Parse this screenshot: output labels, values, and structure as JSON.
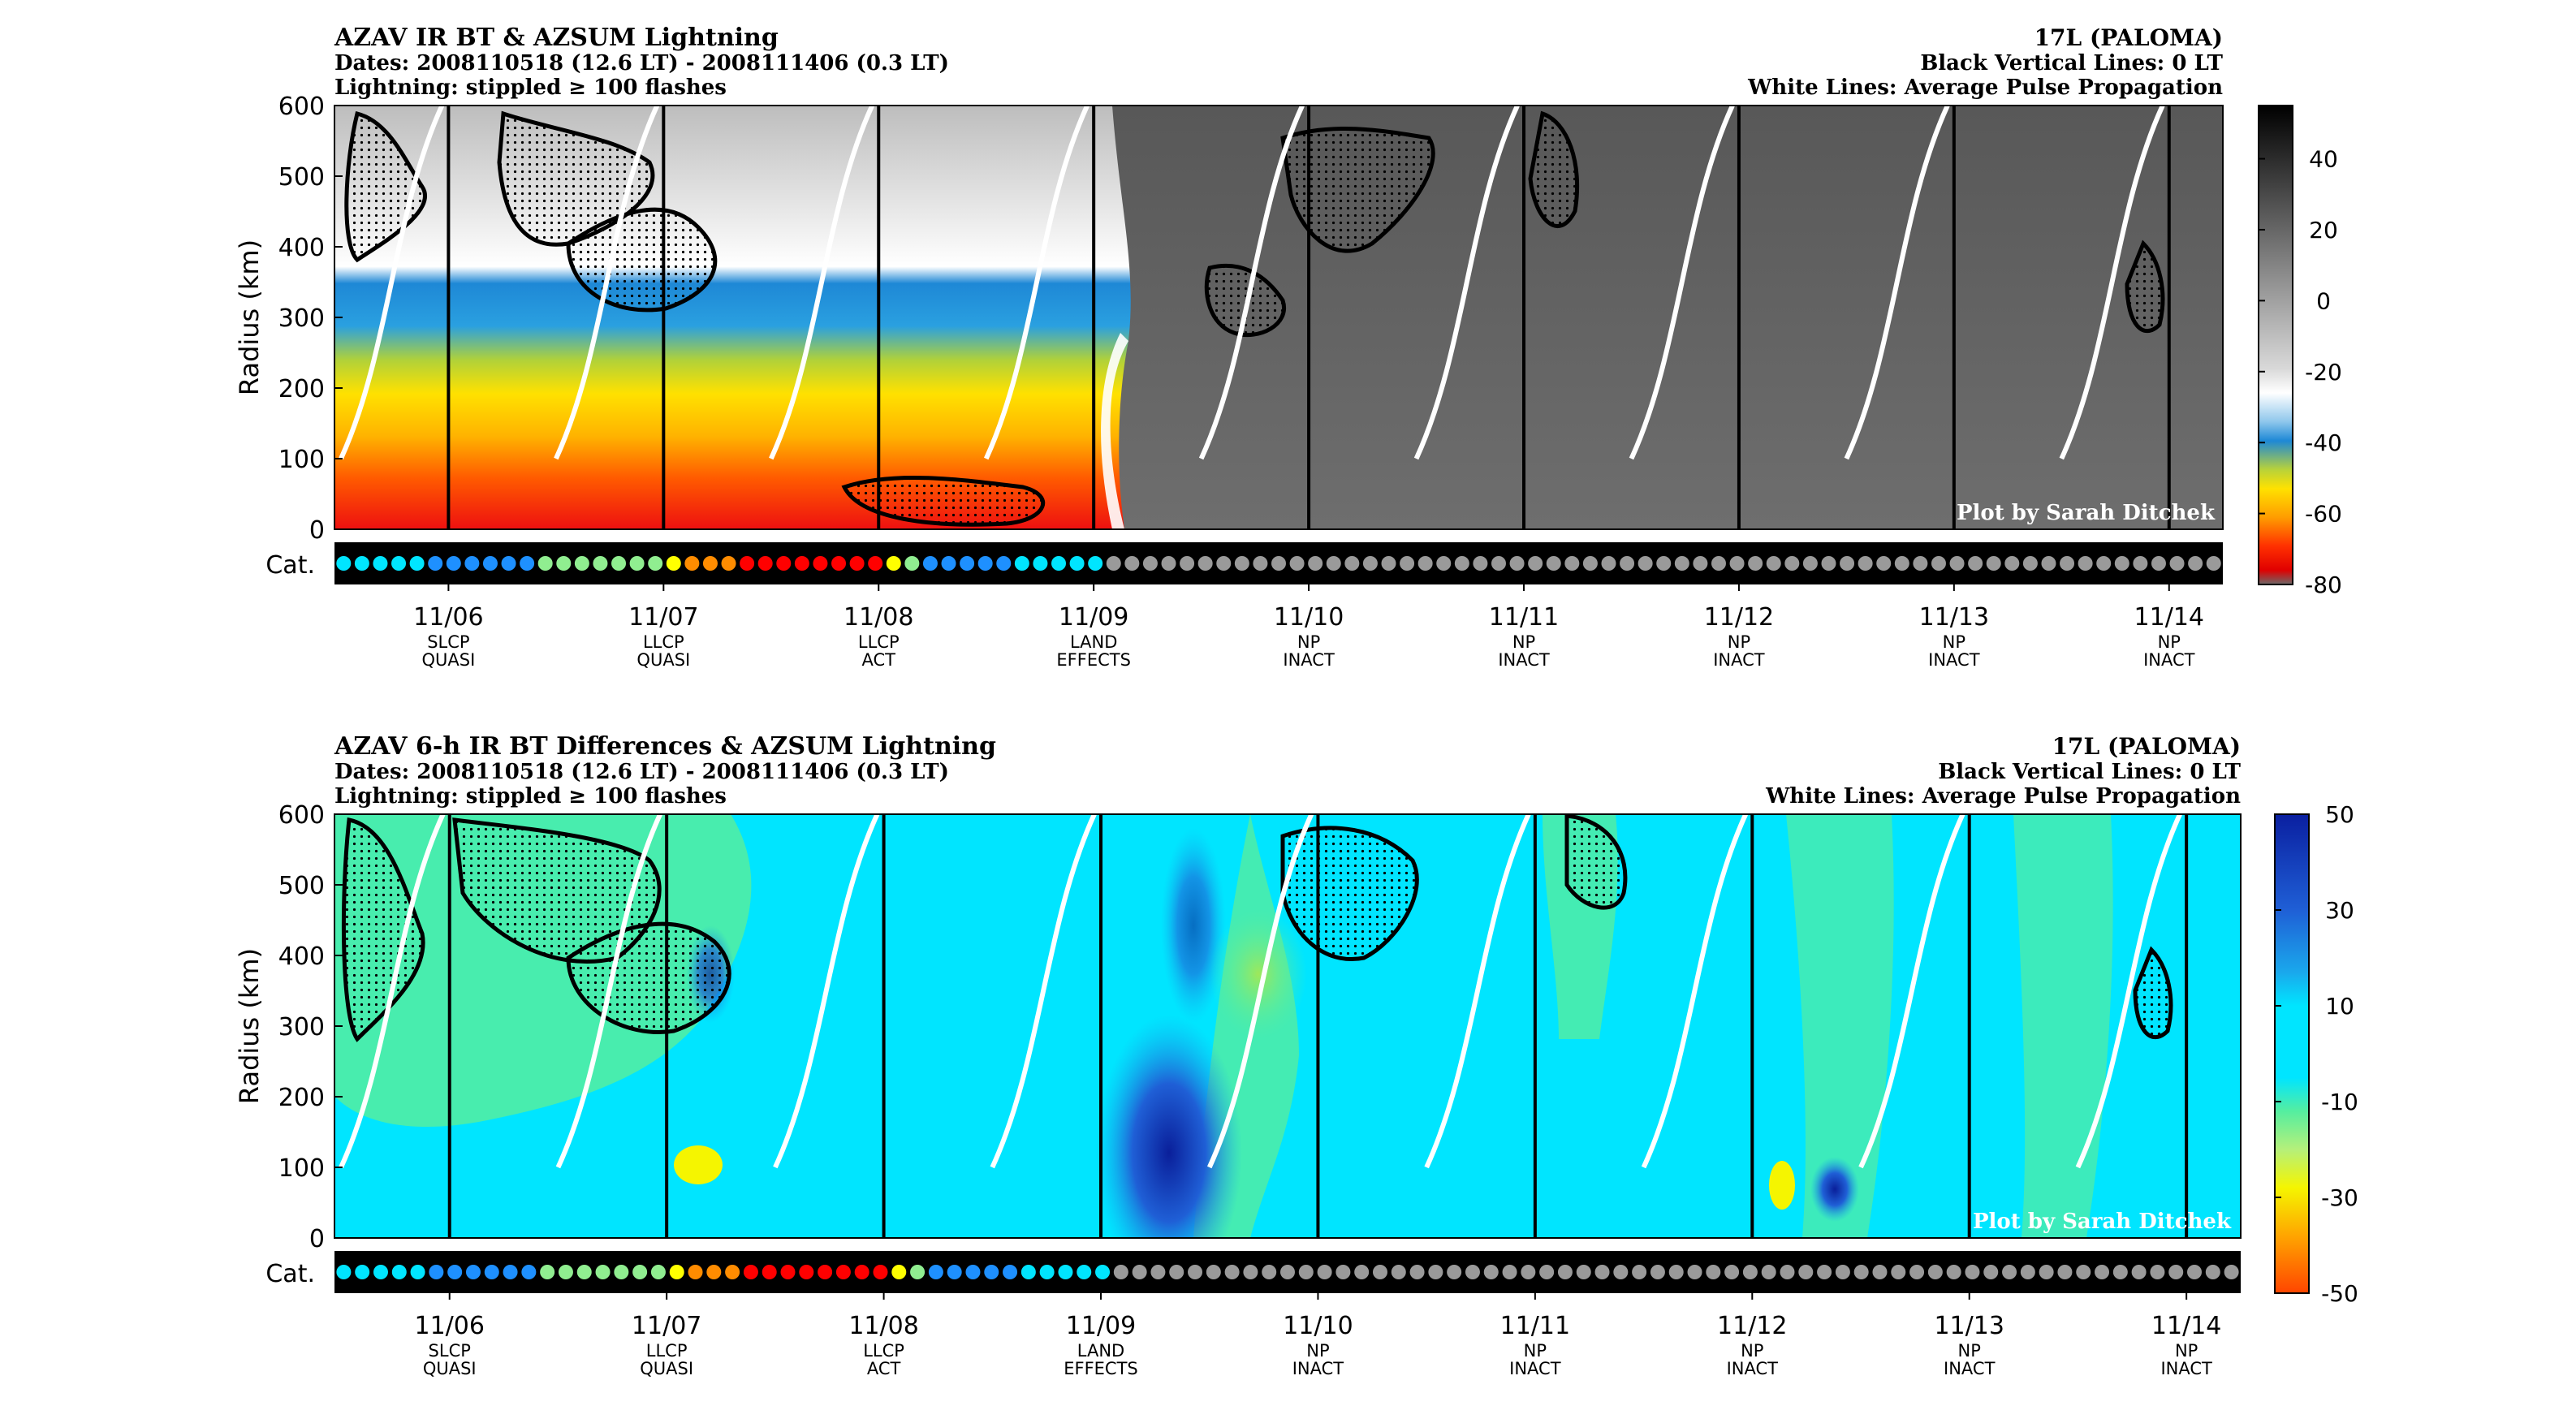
{
  "chart_data": [
    {
      "type": "heatmap",
      "title": "AZAV IR BT & AZSUM Lightning",
      "subtitle_lines": [
        "Dates: 2008110518 (12.6 LT) - 2008111406 (0.3 LT)",
        "Lightning: stippled ≥ 100 flashes"
      ],
      "right_lines": [
        "17L (PALOMA)",
        "Black Vertical Lines: 0 LT",
        "White Lines: Average Pulse Propagation"
      ],
      "ylabel": "Radius (km)",
      "yticks": [
        0,
        100,
        200,
        300,
        400,
        500,
        600
      ],
      "ylim": [
        0,
        600
      ],
      "colorbar_ticks": [
        40,
        20,
        0,
        -20,
        -40,
        -60,
        -80
      ],
      "colorbar_range": [
        -80,
        55
      ],
      "credit": "Plot by Sarah Ditchek",
      "cat_label": "Cat."
    },
    {
      "type": "heatmap",
      "title": "AZAV 6-h IR BT Differences & AZSUM Lightning",
      "subtitle_lines": [
        "Dates: 2008110518 (12.6 LT) - 2008111406 (0.3 LT)",
        "Lightning: stippled ≥ 100 flashes"
      ],
      "right_lines": [
        "17L (PALOMA)",
        "Black Vertical Lines: 0 LT",
        "White Lines: Average Pulse Propagation"
      ],
      "ylabel": "Radius (km)",
      "yticks": [
        0,
        100,
        200,
        300,
        400,
        500,
        600
      ],
      "ylim": [
        0,
        600
      ],
      "colorbar_ticks": [
        50,
        30,
        10,
        -10,
        -30,
        -50
      ],
      "colorbar_range": [
        -50,
        50
      ],
      "credit": "Plot by Sarah Ditchek",
      "cat_label": "Cat."
    }
  ],
  "time_axis": {
    "dates": [
      "11/06",
      "11/07",
      "11/08",
      "11/09",
      "11/10",
      "11/11",
      "11/12",
      "11/13",
      "11/14"
    ],
    "phases": [
      [
        "SLCP",
        "QUASI"
      ],
      [
        "LLCP",
        "QUASI"
      ],
      [
        "LLCP",
        "ACT"
      ],
      [
        "LAND",
        "EFFECTS"
      ],
      [
        "NP",
        "INACT"
      ],
      [
        "NP",
        "INACT"
      ],
      [
        "NP",
        "INACT"
      ],
      [
        "NP",
        "INACT"
      ],
      [
        "NP",
        "INACT"
      ]
    ],
    "start_day_offset": -0.53,
    "end_day_offset": 8.25
  },
  "category_dots": [
    "TS",
    "TS",
    "TS",
    "TS",
    "TS",
    "TD",
    "TD",
    "TD",
    "TD",
    "TD",
    "TD",
    "H1",
    "H1",
    "H1",
    "H1",
    "H1",
    "H1",
    "H1",
    "H2",
    "H3",
    "H3",
    "H3",
    "H4",
    "H4",
    "H4",
    "H4",
    "H4",
    "H4",
    "H4",
    "H4",
    "H2",
    "H1",
    "TD",
    "TD",
    "TD",
    "TD",
    "TD",
    "TS",
    "TS",
    "TS",
    "TS",
    "TS",
    "L",
    "L",
    "L",
    "L",
    "L",
    "L",
    "L",
    "L",
    "L",
    "L",
    "L",
    "L",
    "L",
    "L",
    "L",
    "L",
    "L",
    "L",
    "L",
    "L",
    "L",
    "L",
    "L",
    "L",
    "L",
    "L",
    "L",
    "L",
    "L",
    "L",
    "L",
    "L",
    "L",
    "L",
    "L",
    "L",
    "L",
    "L",
    "L",
    "L",
    "L",
    "L",
    "L",
    "L",
    "L",
    "L",
    "L",
    "L",
    "L",
    "L",
    "L",
    "L",
    "L",
    "L",
    "L",
    "L",
    "L",
    "L",
    "L",
    "L",
    "L"
  ],
  "colors": {
    "TD": "#1e90ff",
    "TS": "#00e5ff",
    "H1": "#90ee90",
    "H2": "#ffff00",
    "H3": "#ff8c00",
    "H4": "#ff0000",
    "L": "#9a9a9a"
  }
}
